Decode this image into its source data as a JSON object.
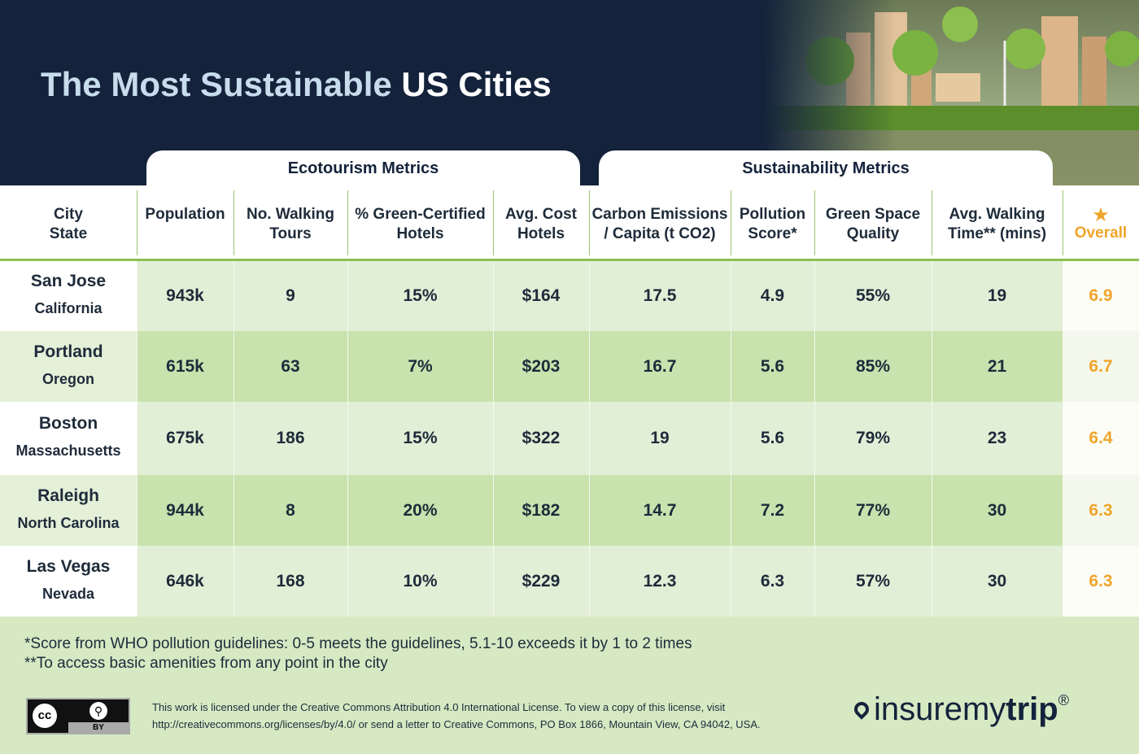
{
  "header": {
    "title": {
      "light": "The Most Sustainable",
      "bold": "US Cities"
    }
  },
  "groups": [
    "Ecotourism Metrics",
    "Sustainability Metrics"
  ],
  "table": {
    "columns": [
      [
        "City",
        "State"
      ],
      [
        "Population"
      ],
      [
        "No. Walking",
        "Tours"
      ],
      [
        "% Green-Certified",
        "Hotels"
      ],
      [
        "Avg. Cost",
        "Hotels"
      ],
      [
        "Carbon Emissions",
        "/ Capita (t CO2)"
      ],
      [
        "Pollution",
        "Score*"
      ],
      [
        "Green Space",
        "Quality"
      ],
      [
        "Avg. Walking",
        "Time** (mins)"
      ],
      [
        "Overall"
      ]
    ],
    "rows": [
      {
        "city": "San Jose",
        "state": "California",
        "cells": [
          "943k",
          "9",
          "15%",
          "$164",
          "17.5",
          "4.9",
          "55%",
          "19"
        ],
        "overall": "6.9"
      },
      {
        "city": "Portland",
        "state": "Oregon",
        "cells": [
          "615k",
          "63",
          "7%",
          "$203",
          "16.7",
          "5.6",
          "85%",
          "21"
        ],
        "overall": "6.7"
      },
      {
        "city": "Boston",
        "state": "Massachusetts",
        "cells": [
          "675k",
          "186",
          "15%",
          "$322",
          "19",
          "5.6",
          "79%",
          "23"
        ],
        "overall": "6.4"
      },
      {
        "city": "Raleigh",
        "state": "North Carolina",
        "cells": [
          "944k",
          "8",
          "20%",
          "$182",
          "14.7",
          "7.2",
          "77%",
          "30"
        ],
        "overall": "6.3"
      },
      {
        "city": "Las Vegas",
        "state": "Nevada",
        "cells": [
          "646k",
          "168",
          "10%",
          "$229",
          "12.3",
          "6.3",
          "57%",
          "30"
        ],
        "overall": "6.3"
      }
    ]
  },
  "footnotes": [
    "*Score from WHO pollution guidelines: 0-5 meets the guidelines, 5.1-10 exceeds it by 1 to 2 times",
    "**To access basic amenities from any point in the city"
  ],
  "license": {
    "badge": [
      "cc",
      "BY"
    ],
    "lines": [
      "This work is licensed under the Creative Commons Attribution 4.0 International License. To view a copy of this license, visit",
      "http://creativecommons.org/licenses/by/4.0/ or send a letter to Creative Commons, PO Box 1866, Mountain View, CA 94042, USA."
    ]
  },
  "logo": {
    "light": "insuremy",
    "bold": "trip",
    "mark": "®"
  }
}
